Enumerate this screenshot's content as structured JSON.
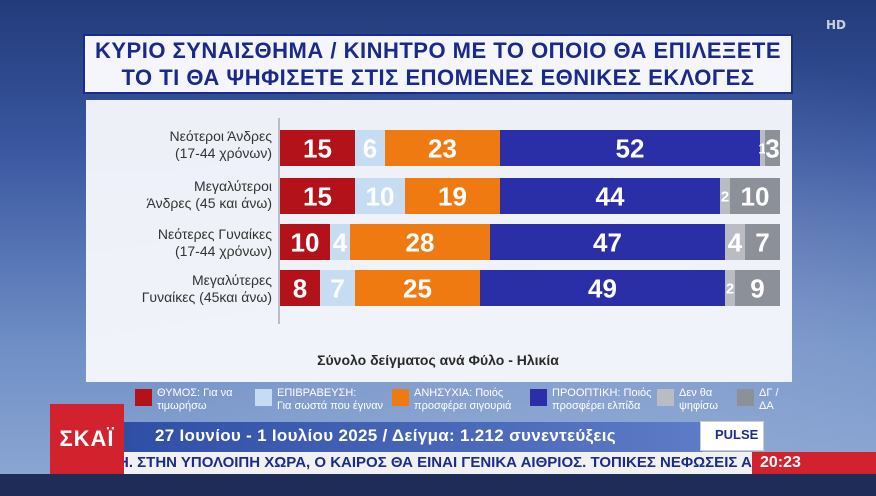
{
  "title_lines": [
    "ΚΥΡΙΟ ΣΥΝΑΙΣΘΗΜΑ / ΚΙΝΗΤΡΟ ΜΕ ΤΟ ΟΠΟΙΟ ΘΑ ΕΠΙΛΕΞΕΤΕ",
    "ΤΟ ΤΙ ΘΑ ΨΗΦΙΣΕΤΕ ΣΤΙΣ ΕΠΟΜΕΝΕΣ ΕΘΝΙΚΕΣ ΕΚΛΟΓΕΣ"
  ],
  "hd_badge": "HD",
  "chart_data": {
    "type": "bar",
    "orientation": "horizontal",
    "stacked": true,
    "subtitle": "Σύνολο δείγματος ανά Φύλο - Ηλικία",
    "categories": [
      [
        "Νεότεροι Άνδρες",
        "(17-44 χρόνων)"
      ],
      [
        "Μεγαλύτεροι",
        "Άνδρες (45 και άνω)"
      ],
      [
        "Νεότερες Γυναίκες",
        "(17-44 χρόνων)"
      ],
      [
        "Μεγαλύτερες",
        "Γυναίκες (45και άνω)"
      ]
    ],
    "series": [
      {
        "name": "ΘΥΜΟΣ: Για να τιμωρήσω",
        "color": "#b3121b",
        "text_color": "#ffffff",
        "values": [
          15,
          15,
          10,
          8
        ]
      },
      {
        "name": "ΕΠΙΒΡΑΒΕΥΣΗ: Για σωστά που έγιναν",
        "color": "#c6dcf3",
        "text_color": "#ffffff",
        "values": [
          6,
          10,
          4,
          7
        ]
      },
      {
        "name": "ΑΝΗΣΥΧΙΑ: Ποιός προσφέρει σιγουριά",
        "color": "#f07a12",
        "text_color": "#ffffff",
        "values": [
          23,
          19,
          28,
          25
        ]
      },
      {
        "name": "ΠΡΟΟΠΤΙΚΗ: Ποιός προσφέρει ελπίδα",
        "color": "#2a2fa8",
        "text_color": "#ffffff",
        "values": [
          52,
          44,
          47,
          49
        ]
      },
      {
        "name": "Δεν θα ψηφίσω",
        "color": "#b9bcc3",
        "text_color": "#ffffff",
        "values": [
          1,
          2,
          4,
          2
        ]
      },
      {
        "name": "ΔΓ / ΔΑ",
        "color": "#8c9099",
        "text_color": "#ffffff",
        "values": [
          3,
          10,
          7,
          9
        ]
      }
    ],
    "legend_labels": [
      [
        "ΘΥΜΟΣ: Για να",
        "τιμωρήσω"
      ],
      [
        "ΕΠΙΒΡΑΒΕΥΣΗ:",
        "Για σωστά που έγιναν"
      ],
      [
        "ΑΝΗΣΥΧΙΑ: Ποιός",
        "προσφέρει σιγουριά"
      ],
      [
        "ΠΡΟΟΠΤΙΚΗ: Ποιός",
        "προσφέρει ελπίδα"
      ],
      [
        "Δεν θα",
        "ψηφίσω"
      ],
      [
        "ΔΓ /",
        "ΔΑ"
      ]
    ],
    "legend_placement": "bottom"
  },
  "footer": {
    "channel_logo": "ΣΚΑΪ",
    "info": "27 Ιουνίου - 1 Ιουλίου 2025 / Δείγμα: 1.212 συνεντεύξεις",
    "pollster_logo": "PULSE",
    "ticker": "Η. ΣΤΗΝ ΥΠΟΛΟΙΠΗ ΧΩΡΑ, Ο ΚΑΙΡΟΣ ΘΑ ΕΙΝΑΙ ΓΕΝΙΚΑ ΑΙΘΡΙΟΣ. ΤΟΠΙΚΕΣ ΝΕΦΩΣΕΙΣ ΑΝΑΜΕΝ",
    "clock": "20:23"
  }
}
